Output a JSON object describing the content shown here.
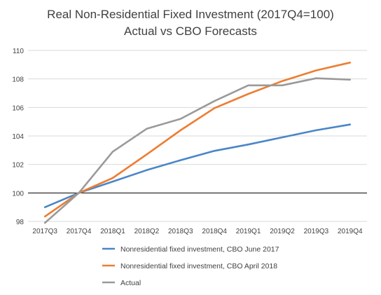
{
  "chart_data": {
    "type": "line",
    "title": "Real Non-Residential Fixed Investment (2017Q4=100)",
    "subtitle": "Actual vs CBO Forecasts",
    "xlabel": "",
    "ylabel": "",
    "categories": [
      "2017Q3",
      "2017Q4",
      "2018Q1",
      "2018Q2",
      "2018Q3",
      "2018Q4",
      "2019Q1",
      "2019Q2",
      "2019Q3",
      "2019Q4"
    ],
    "ylim": [
      98,
      110
    ],
    "yticks": [
      98,
      100,
      102,
      104,
      106,
      108,
      110
    ],
    "grid": true,
    "legend_position": "bottom",
    "series": [
      {
        "name": "Nonresidential fixed investment, CBO June 2017",
        "color": "#4a86c8",
        "values": [
          99.0,
          100.0,
          100.8,
          101.6,
          102.3,
          102.95,
          103.4,
          103.9,
          104.4,
          104.8
        ]
      },
      {
        "name": "Nonresidential fixed investment, CBO April 2018",
        "color": "#ed7d31",
        "values": [
          98.35,
          100.0,
          101.05,
          102.7,
          104.4,
          105.95,
          106.95,
          107.85,
          108.6,
          109.15
        ]
      },
      {
        "name": "Actual",
        "color": "#9a9a9a",
        "values": [
          97.9,
          100.0,
          102.9,
          104.5,
          105.2,
          106.45,
          107.55,
          107.55,
          108.05,
          107.95
        ]
      }
    ]
  }
}
